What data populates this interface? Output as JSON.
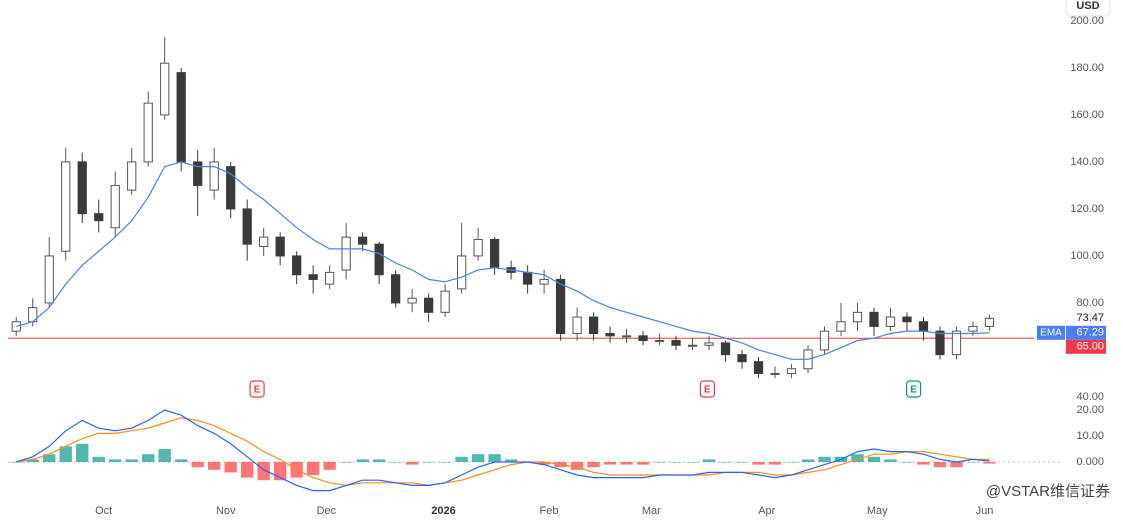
{
  "currency": "USD",
  "watermark": "@VSTAR维信证券",
  "chart_data": [
    {
      "type": "candlestick",
      "open": [
        68,
        72,
        80,
        102,
        140,
        118,
        112,
        128,
        140,
        160,
        178,
        140,
        128,
        138,
        120,
        104,
        108,
        100,
        92,
        88,
        94,
        108,
        105,
        92,
        80,
        82,
        76,
        86,
        100,
        107,
        95,
        93,
        88,
        90,
        67,
        74,
        67,
        66,
        66,
        64,
        64,
        62,
        62,
        63,
        58,
        55,
        50,
        50,
        52,
        60,
        68,
        72,
        76,
        70,
        74,
        72,
        68,
        58,
        68,
        70
      ],
      "high": [
        74,
        82,
        108,
        146,
        144,
        124,
        136,
        146,
        170,
        193,
        180,
        145,
        146,
        140,
        124,
        112,
        110,
        102,
        96,
        96,
        114,
        110,
        106,
        94,
        86,
        84,
        88,
        114,
        112,
        108,
        98,
        96,
        94,
        92,
        78,
        76,
        70,
        69,
        68,
        67,
        66,
        65,
        66,
        64,
        60,
        57,
        53,
        54,
        62,
        70,
        80,
        80,
        78,
        78,
        76,
        74,
        70,
        70,
        72,
        75
      ],
      "low": [
        66,
        70,
        78,
        98,
        114,
        110,
        108,
        126,
        138,
        158,
        136,
        117,
        124,
        116,
        98,
        100,
        96,
        88,
        84,
        86,
        90,
        102,
        88,
        78,
        76,
        72,
        74,
        84,
        98,
        92,
        90,
        84,
        84,
        64,
        64,
        64,
        63,
        63,
        62,
        62,
        60,
        60,
        60,
        55,
        52,
        48,
        48,
        48,
        50,
        58,
        66,
        68,
        66,
        68,
        68,
        64,
        56,
        56,
        66,
        68
      ],
      "close": [
        72,
        78,
        100,
        140,
        118,
        115,
        130,
        140,
        165,
        182,
        140,
        130,
        140,
        120,
        105,
        108,
        100,
        92,
        90,
        93,
        108,
        105,
        92,
        80,
        82,
        76,
        85,
        100,
        107,
        95,
        93,
        88,
        90,
        67,
        74,
        67,
        66,
        66,
        64,
        64,
        62,
        62,
        63,
        58,
        55,
        50,
        50,
        52,
        60,
        68,
        72,
        76,
        70,
        74,
        72,
        68,
        58,
        68,
        70,
        73.47
      ],
      "up_color": "#ffffff",
      "down_color": "#3a3a3a",
      "outline_color": "#555555",
      "ema": {
        "name": "EMA",
        "color": "#4a7ef5",
        "values": [
          70,
          72,
          78,
          88,
          96,
          102,
          108,
          115,
          125,
          138,
          140,
          138,
          138,
          135,
          129,
          124,
          118,
          112,
          107,
          103,
          103,
          103,
          101,
          97,
          94,
          90,
          89,
          91,
          94,
          95,
          94,
          93,
          92,
          88,
          85,
          81,
          78,
          76,
          74,
          72,
          70,
          68,
          67,
          65,
          63,
          60,
          58,
          56,
          56,
          58,
          61,
          64,
          65,
          67,
          68,
          68,
          67,
          67,
          67,
          67.29
        ]
      },
      "price_line": {
        "value": 65,
        "label": "65.00",
        "color": "#f23645"
      },
      "events": [
        {
          "x": 15.1,
          "label": "E",
          "color": "#f23645"
        },
        {
          "x": 42.4,
          "label": "E",
          "color": "#f23645"
        },
        {
          "x": 54.9,
          "label": "E",
          "color": "#089981"
        }
      ],
      "xlim": [
        0,
        62.2
      ],
      "ylim": [
        38.7,
        208.9
      ],
      "yticks": [
        {
          "value": 40,
          "label": "40.00"
        },
        {
          "value": 80,
          "label": "80.00"
        },
        {
          "value": 100,
          "label": "100.00"
        },
        {
          "value": 120,
          "label": "120.00"
        },
        {
          "value": 140,
          "label": "140.00"
        },
        {
          "value": 160,
          "label": "160.00"
        },
        {
          "value": 180,
          "label": "180.00"
        },
        {
          "value": 200,
          "label": "200.00"
        }
      ]
    },
    {
      "type": "macd",
      "macd": {
        "color": "#2962ff",
        "values": [
          0,
          2,
          6,
          12,
          16,
          13,
          12,
          13,
          16,
          20,
          18,
          14,
          11,
          7,
          2,
          -3,
          -6,
          -9,
          -11,
          -11,
          -9,
          -7,
          -7,
          -8,
          -9,
          -9,
          -8,
          -5,
          -2,
          0,
          0,
          0,
          -1,
          -3,
          -5,
          -6,
          -6,
          -6,
          -6,
          -5,
          -5,
          -5,
          -4,
          -4,
          -4,
          -5,
          -6,
          -5,
          -3,
          -1,
          1,
          4,
          5,
          4,
          4,
          3,
          1,
          0,
          1,
          0.4
        ]
      },
      "signal": {
        "color": "#ff8c1a",
        "values": [
          0,
          1,
          3,
          6,
          9,
          11,
          11,
          12,
          13,
          15,
          17,
          16,
          14,
          11,
          8,
          4,
          1,
          -3,
          -6,
          -8,
          -9,
          -8,
          -8,
          -8,
          -8,
          -9,
          -8,
          -7,
          -5,
          -3,
          -1,
          0,
          0,
          -1,
          -2,
          -4,
          -5,
          -5,
          -5,
          -5,
          -5,
          -5,
          -5,
          -4,
          -4,
          -4,
          -5,
          -5,
          -4,
          -3,
          -1,
          1,
          3,
          3,
          4,
          4,
          3,
          2,
          1,
          1
        ]
      },
      "histogram": {
        "up_color": "#26a69a",
        "down_color": "#ff5252",
        "values": [
          0,
          1,
          3,
          6,
          7,
          2,
          1,
          1,
          3,
          5,
          1,
          -2,
          -3,
          -4,
          -6,
          -7,
          -7,
          -6,
          -5,
          -3,
          0,
          1,
          1,
          0,
          -1,
          0,
          0,
          2,
          3,
          3,
          1,
          0,
          -1,
          -2,
          -3,
          -2,
          -1,
          -1,
          -1,
          0,
          0,
          0,
          1,
          0,
          0,
          -1,
          -1,
          0,
          1,
          2,
          2,
          3,
          2,
          1,
          0,
          -1,
          -2,
          -2,
          0,
          -0.6
        ]
      },
      "zero_line": true,
      "xlim": [
        0,
        62.2
      ],
      "ylim": [
        -14.6,
        24.6
      ],
      "yticks": [
        {
          "value": 0,
          "label": "0.000"
        },
        {
          "value": 10,
          "label": "10.00"
        },
        {
          "value": 20,
          "label": "20.00"
        }
      ],
      "xticks": [
        {
          "value": 5.8,
          "label": "Oct"
        },
        {
          "value": 13.2,
          "label": "Nov"
        },
        {
          "value": 19.3,
          "label": "Dec"
        },
        {
          "value": 26.4,
          "label": "2026"
        },
        {
          "value": 32.8,
          "label": "Feb"
        },
        {
          "value": 39.0,
          "label": "Mar"
        },
        {
          "value": 46.0,
          "label": "Apr"
        },
        {
          "value": 52.7,
          "label": "May"
        },
        {
          "value": 59.2,
          "label": "Jun"
        }
      ]
    }
  ]
}
